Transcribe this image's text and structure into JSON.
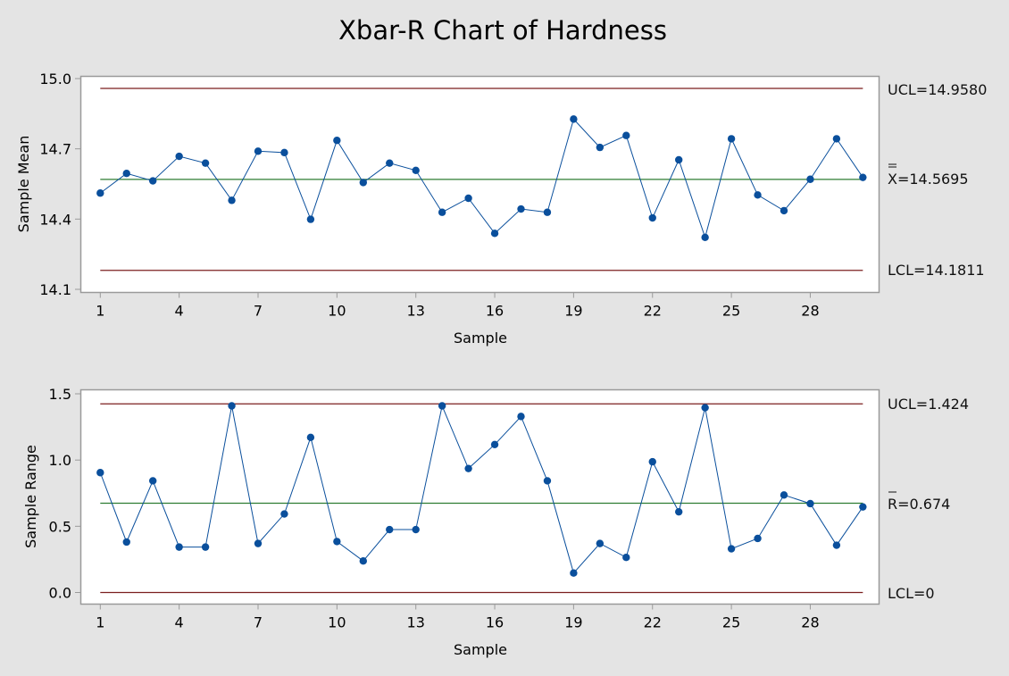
{
  "title": "Xbar-R Chart of Hardness",
  "colors": {
    "background": "#e4e4e4",
    "plot_bg": "#ffffff",
    "frame": "#9a9a9a",
    "data": "#0a4f9c",
    "center_line": "#2e7d32",
    "limit_line": "#7b1f1f"
  },
  "chart_data": [
    {
      "type": "line",
      "title": "Xbar Chart",
      "xlabel": "Sample",
      "ylabel": "Sample Mean",
      "ylim": [
        14.1,
        15.0
      ],
      "yticks": [
        14.1,
        14.4,
        14.7,
        15.0
      ],
      "ytick_labels": [
        "14.1",
        "14.4",
        "14.7",
        "15.0"
      ],
      "xticks": [
        1,
        4,
        7,
        10,
        13,
        16,
        19,
        22,
        25,
        28
      ],
      "x": [
        1,
        2,
        3,
        4,
        5,
        6,
        7,
        8,
        9,
        10,
        11,
        12,
        13,
        14,
        15,
        16,
        17,
        18,
        19,
        20,
        21,
        22,
        23,
        24,
        25,
        26,
        27,
        28,
        29,
        30
      ],
      "values": [
        14.511,
        14.595,
        14.563,
        14.668,
        14.639,
        14.48,
        14.69,
        14.684,
        14.399,
        14.736,
        14.556,
        14.639,
        14.608,
        14.429,
        14.489,
        14.339,
        14.443,
        14.429,
        14.827,
        14.706,
        14.757,
        14.405,
        14.653,
        14.322,
        14.743,
        14.503,
        14.436,
        14.57,
        14.743,
        14.578
      ],
      "ucl": 14.958,
      "center": 14.5695,
      "lcl": 14.1811,
      "labels": {
        "ucl": "UCL=14.9580",
        "center_symbol": "X",
        "center": "=14.5695",
        "lcl": "LCL=14.1811"
      },
      "grid": false
    },
    {
      "type": "line",
      "title": "R Chart",
      "xlabel": "Sample",
      "ylabel": "Sample Range",
      "ylim": [
        0.0,
        1.5
      ],
      "yticks": [
        0.0,
        0.5,
        1.0,
        1.5
      ],
      "ytick_labels": [
        "0.0",
        "0.5",
        "1.0",
        "1.5"
      ],
      "xticks": [
        1,
        4,
        7,
        10,
        13,
        16,
        19,
        22,
        25,
        28
      ],
      "x": [
        1,
        2,
        3,
        4,
        5,
        6,
        7,
        8,
        9,
        10,
        11,
        12,
        13,
        14,
        15,
        16,
        17,
        18,
        19,
        20,
        21,
        22,
        23,
        24,
        25,
        26,
        27,
        28,
        29,
        30
      ],
      "values": [
        0.905,
        0.381,
        0.843,
        0.343,
        0.343,
        1.409,
        0.37,
        0.593,
        1.171,
        0.385,
        0.238,
        0.475,
        0.475,
        1.409,
        0.936,
        1.117,
        1.329,
        0.843,
        0.147,
        0.37,
        0.265,
        0.987,
        0.609,
        1.395,
        0.33,
        0.408,
        0.736,
        0.671,
        0.357,
        0.646
      ],
      "ucl": 1.424,
      "center": 0.674,
      "lcl": 0.0,
      "labels": {
        "ucl": "UCL=1.424",
        "center_symbol": "R",
        "center": "=0.674",
        "lcl": "LCL=0"
      },
      "grid": false
    }
  ]
}
